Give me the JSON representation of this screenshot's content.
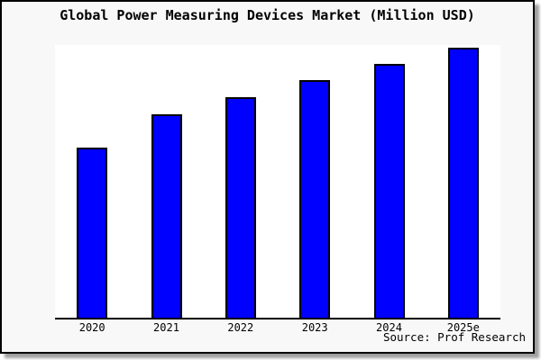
{
  "chart_data": {
    "type": "bar",
    "title": "Global Power Measuring Devices Market (Million USD)",
    "categories": [
      "2020",
      "2021",
      "2022",
      "2023",
      "2024",
      "2025e"
    ],
    "values": [
      63.0,
      75.3,
      81.7,
      88.0,
      94.0,
      100.0
    ],
    "value_scale_note": "no y-axis shown; bar heights normalized to 2025e = 100",
    "xlabel": "",
    "ylabel": "",
    "ylim": [
      0,
      100
    ],
    "grid": false,
    "legend": "none",
    "source_note": "Source: Prof Research",
    "bar_color": "#0000ff",
    "bar_edge_color": "#000000"
  },
  "colors": {
    "figure_background": "#f8f8f8",
    "plot_background": "#ffffff",
    "border": "#000000",
    "text": "#000000"
  }
}
